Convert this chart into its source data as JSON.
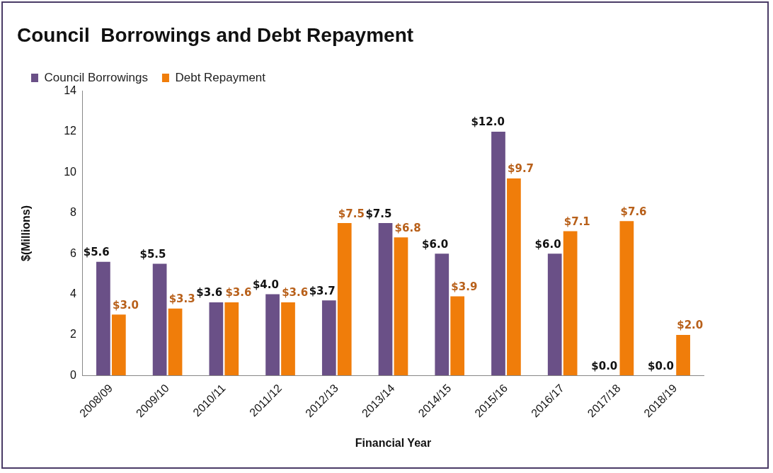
{
  "chart_data": {
    "type": "bar",
    "title": "Council  Borrowings and Debt Repayment",
    "xlabel": "Financial Year",
    "ylabel": "$(Millions)",
    "categories": [
      "2008/09",
      "2009/10",
      "2010/11",
      "2011/12",
      "2012/13",
      "2013/14",
      "2014/15",
      "2015/16",
      "2016/17",
      "2017/18",
      "2018/19"
    ],
    "series": [
      {
        "name": "Council Borrowings",
        "color": "#6a5087",
        "values": [
          5.6,
          5.5,
          3.6,
          4.0,
          3.7,
          7.5,
          6.0,
          12.0,
          6.0,
          0.0,
          0.0
        ],
        "value_labels": [
          "$5.6",
          "$5.5",
          "$3.6",
          "$4.0",
          "$3.7",
          "$7.5",
          "$6.0",
          "$12.0",
          "$6.0",
          "$0.0",
          "$0.0"
        ]
      },
      {
        "name": "Debt Repayment",
        "color": "#f07d0a",
        "values": [
          3.0,
          3.3,
          3.6,
          3.6,
          7.5,
          6.8,
          3.9,
          9.7,
          7.1,
          7.6,
          2.0
        ],
        "value_labels": [
          "$3.0",
          "$3.3",
          "$3.6",
          "$3.6",
          "$7.5",
          "$6.8",
          "$3.9",
          "$9.7",
          "$7.1",
          "$7.6",
          "$2.0"
        ]
      }
    ],
    "ylim": [
      0,
      14
    ],
    "yticks": [
      0,
      2,
      4,
      6,
      8,
      10,
      12,
      14
    ],
    "grid": false,
    "legend": "top"
  }
}
